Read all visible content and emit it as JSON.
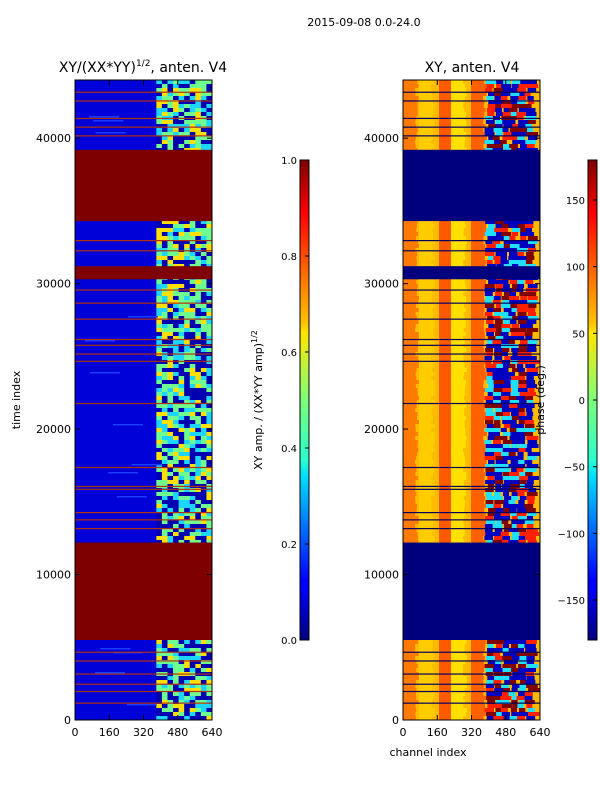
{
  "suptitle": "2015-09-08 0.0-24.0",
  "chart_data": [
    {
      "type": "heatmap",
      "title": "XY/(XX*YY)",
      "title_sup": "1/2",
      "title_suffix": ", anten. V4",
      "xlabel": "",
      "ylabel": "time index",
      "xlim": [
        0,
        640
      ],
      "ylim": [
        0,
        44000
      ],
      "xticks": [
        0,
        160,
        320,
        480,
        640
      ],
      "yticks": [
        0,
        10000,
        20000,
        30000,
        40000
      ],
      "colorbar": {
        "label": "XY amp. / (XX*YY amp)",
        "label_sup": "1/2",
        "range": [
          0.0,
          1.0
        ],
        "ticks": [
          "0.0",
          "0.2",
          "0.4",
          "0.6",
          "0.8",
          "1.0"
        ],
        "colormap": "jet"
      },
      "flagged_bands": [
        [
          5500,
          12200
        ],
        [
          34300,
          39200
        ],
        [
          30300,
          31200
        ]
      ],
      "active_channel_range": [
        380,
        640
      ]
    },
    {
      "type": "heatmap",
      "title": "XY, anten. V4",
      "xlabel": "channel index",
      "ylabel": "",
      "xlim": [
        0,
        640
      ],
      "ylim": [
        0,
        44000
      ],
      "xticks": [
        0,
        160,
        320,
        480,
        640
      ],
      "yticks": [
        0,
        10000,
        20000,
        30000,
        40000
      ],
      "colorbar": {
        "label": "phase (deg.)",
        "range": [
          -180,
          180
        ],
        "ticks": [
          "−150",
          "−100",
          "−50",
          "0",
          "50",
          "100",
          "150"
        ],
        "tick_values": [
          -150,
          -100,
          -50,
          0,
          50,
          100,
          150
        ],
        "colormap": "jet"
      },
      "flagged_bands": [
        [
          5500,
          12200
        ],
        [
          34300,
          39200
        ],
        [
          30300,
          31200
        ]
      ],
      "active_channel_range": [
        380,
        640
      ]
    }
  ]
}
